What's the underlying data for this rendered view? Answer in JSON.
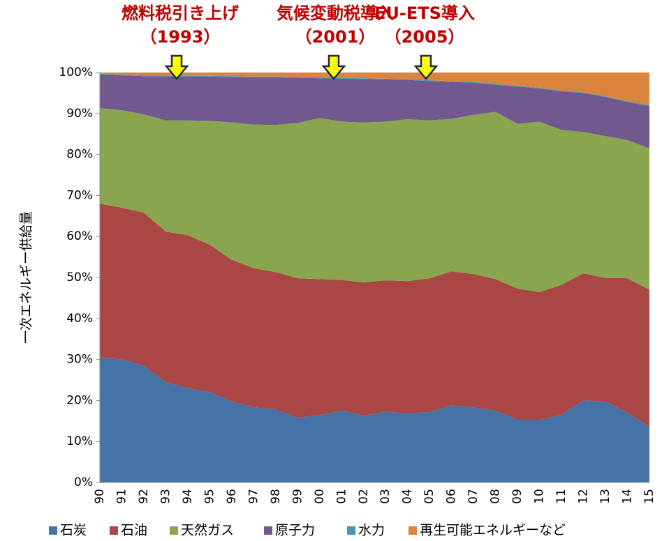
{
  "chart_data": {
    "type": "stacked_area",
    "annotations": [
      {
        "text": "燃料税引き上げ",
        "year": "（1993）"
      },
      {
        "text": "気候変動税導入",
        "year": "（2001）"
      },
      {
        "text": "EU-ETS導入",
        "year": "（2005）"
      }
    ],
    "ylabel": "一次エネルギー供給量",
    "categories": [
      "90",
      "91",
      "92",
      "93",
      "94",
      "95",
      "96",
      "97",
      "98",
      "99",
      "00",
      "01",
      "02",
      "03",
      "04",
      "05",
      "06",
      "07",
      "08",
      "09",
      "10",
      "11",
      "12",
      "13",
      "14",
      "15"
    ],
    "series": [
      {
        "name": "石炭",
        "color": "#4572a7",
        "values": [
          30.5,
          30,
          28.5,
          24.5,
          23,
          22,
          19.8,
          18.3,
          17.8,
          15.8,
          16.5,
          17.5,
          16.3,
          17.3,
          16.8,
          17.2,
          18.8,
          18.3,
          17.5,
          15.3,
          15.3,
          16.5,
          20,
          19.7,
          17,
          13.5
        ]
      },
      {
        "name": "石油",
        "color": "#aa4643",
        "values": [
          37.5,
          37,
          37.3,
          36.7,
          37.3,
          36,
          34.5,
          34,
          33.5,
          34,
          33.1,
          31.9,
          32.5,
          32,
          32.3,
          32.6,
          32.7,
          32.5,
          32.1,
          32,
          31.1,
          31.7,
          31,
          30.2,
          32.8,
          33.5
        ]
      },
      {
        "name": "天然ガス",
        "color": "#89a54e",
        "values": [
          23.3,
          23.8,
          24,
          27.1,
          28,
          30.2,
          33.5,
          35,
          35.9,
          37.9,
          39.3,
          38.6,
          39,
          38.7,
          39.5,
          38.5,
          37.2,
          38.9,
          40.8,
          40.2,
          41.6,
          37.8,
          34.5,
          34.6,
          33.7,
          34.5
        ]
      },
      {
        "name": "原子力",
        "color": "#71588f",
        "values": [
          8.2,
          8.5,
          9.3,
          10.8,
          10.7,
          10.8,
          11.1,
          11.5,
          11.6,
          11,
          9.7,
          10.5,
          10.6,
          10.3,
          9.6,
          9.6,
          9,
          7.8,
          6.6,
          9.1,
          8.1,
          9.4,
          9.5,
          9.5,
          9.3,
          10.3
        ]
      },
      {
        "name": "水力",
        "color": "#4198af",
        "values": [
          0.2,
          0.2,
          0.2,
          0.2,
          0.2,
          0.2,
          0.2,
          0.2,
          0.2,
          0.2,
          0.2,
          0.2,
          0.2,
          0.2,
          0.2,
          0.2,
          0.2,
          0.2,
          0.2,
          0.2,
          0.2,
          0.2,
          0.2,
          0.2,
          0.2,
          0.2
        ]
      },
      {
        "name": "再生可能エネルギーなど",
        "color": "#db843d",
        "values": [
          0.3,
          0.5,
          0.7,
          0.7,
          0.8,
          0.8,
          0.9,
          1,
          1,
          1.1,
          1.2,
          1.3,
          1.4,
          1.5,
          1.6,
          1.9,
          2.1,
          2.3,
          2.8,
          3.2,
          3.7,
          4.4,
          4.8,
          5.8,
          7,
          8
        ]
      }
    ],
    "ylim": [
      0,
      100
    ],
    "yticks": [
      {
        "value": 0,
        "label": "0%"
      },
      {
        "value": 10,
        "label": "10%"
      },
      {
        "value": 20,
        "label": "20%"
      },
      {
        "value": 30,
        "label": "30%"
      },
      {
        "value": 40,
        "label": "40%"
      },
      {
        "value": 50,
        "label": "50%"
      },
      {
        "value": 60,
        "label": "60%"
      },
      {
        "value": 70,
        "label": "70%"
      },
      {
        "value": 80,
        "label": "80%"
      },
      {
        "value": 90,
        "label": "90%"
      },
      {
        "value": 100,
        "label": "100%"
      }
    ]
  }
}
